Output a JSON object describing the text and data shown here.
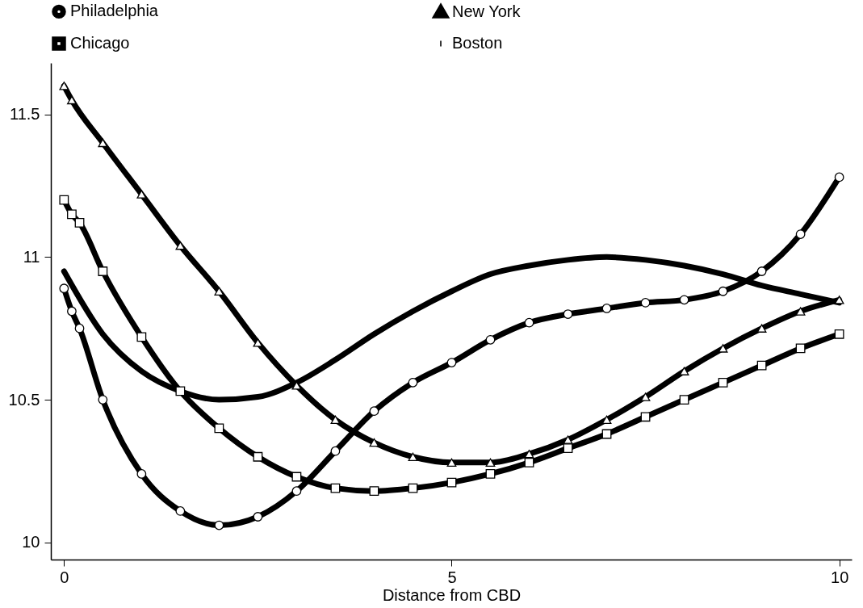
{
  "chart_data": {
    "type": "line",
    "xlabel": "Distance from CBD",
    "xlim": [
      -0.17,
      10.16
    ],
    "ylim": [
      9.94,
      11.68
    ],
    "xticks": [
      0,
      5,
      10
    ],
    "yticks": [
      10,
      10.5,
      11,
      11.5
    ],
    "grid": false,
    "legend": "top",
    "line_style": "solid",
    "series": [
      {
        "name": "Philadelphia",
        "color": "#000000",
        "marker": "circle",
        "x": [
          0,
          0.1,
          0.2,
          0.5,
          1,
          1.5,
          2,
          2.5,
          3,
          3.5,
          4,
          4.5,
          5,
          5.5,
          6,
          6.5,
          7,
          7.5,
          8,
          8.5,
          9,
          9.5,
          10
        ],
        "values": [
          10.89,
          10.81,
          10.75,
          10.5,
          10.24,
          10.11,
          10.06,
          10.09,
          10.18,
          10.32,
          10.46,
          10.56,
          10.63,
          10.71,
          10.77,
          10.8,
          10.82,
          10.84,
          10.85,
          10.88,
          10.95,
          11.08,
          11.28
        ]
      },
      {
        "name": "New York",
        "color": "#000000",
        "marker": "triangle",
        "x": [
          0,
          0.1,
          0.5,
          1,
          1.5,
          2,
          2.5,
          3,
          3.5,
          4,
          4.5,
          5,
          5.5,
          6,
          6.5,
          7,
          7.5,
          8,
          8.5,
          9,
          9.5,
          10
        ],
        "values": [
          11.6,
          11.55,
          11.4,
          11.22,
          11.04,
          10.88,
          10.7,
          10.55,
          10.43,
          10.35,
          10.3,
          10.28,
          10.28,
          10.31,
          10.36,
          10.43,
          10.51,
          10.6,
          10.68,
          10.75,
          10.81,
          10.85
        ]
      },
      {
        "name": "Chicago",
        "color": "#000000",
        "marker": "square",
        "x": [
          0,
          0.1,
          0.2,
          0.5,
          1,
          1.5,
          2,
          2.5,
          3,
          3.5,
          4,
          4.5,
          5,
          5.5,
          6,
          6.5,
          7,
          7.5,
          8,
          8.5,
          9,
          9.5,
          10
        ],
        "values": [
          11.2,
          11.15,
          11.12,
          10.95,
          10.72,
          10.53,
          10.4,
          10.3,
          10.23,
          10.19,
          10.18,
          10.19,
          10.21,
          10.24,
          10.28,
          10.33,
          10.38,
          10.44,
          10.5,
          10.56,
          10.62,
          10.68,
          10.73
        ]
      },
      {
        "name": "Boston",
        "color": "#000000",
        "marker": "none",
        "x": [
          0,
          0.5,
          1,
          1.5,
          2,
          2.5,
          3,
          3.5,
          4,
          4.5,
          5,
          5.5,
          6,
          6.5,
          7,
          7.5,
          8,
          8.5,
          9,
          9.5,
          10
        ],
        "values": [
          10.95,
          10.73,
          10.6,
          10.53,
          10.5,
          10.51,
          10.56,
          10.64,
          10.73,
          10.81,
          10.88,
          10.94,
          10.97,
          10.99,
          11.0,
          10.99,
          10.97,
          10.94,
          10.9,
          10.87,
          10.84
        ]
      }
    ]
  }
}
